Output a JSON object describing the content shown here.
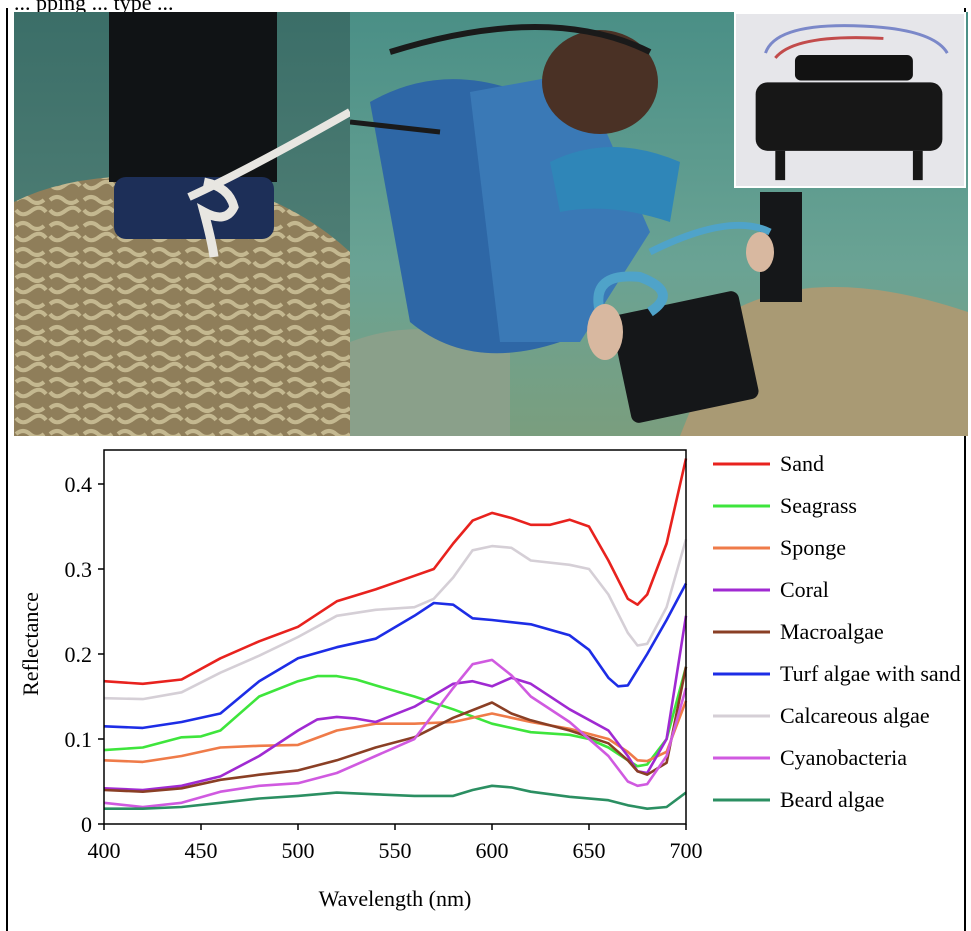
{
  "caption": "... pping ... type ...",
  "chart_data": {
    "type": "line",
    "xlabel": "Wavelength (nm)",
    "ylabel": "Reflectance",
    "xlim": [
      400,
      700
    ],
    "ylim": [
      0,
      0.44
    ],
    "xticks": [
      400,
      450,
      500,
      550,
      600,
      650,
      700
    ],
    "yticks": [
      0,
      0.1,
      0.2,
      0.3,
      0.4
    ],
    "ytick_labels": [
      "0",
      "0.1",
      "0.2",
      "0.3",
      "0.4"
    ],
    "legend_position": "right",
    "grid": false,
    "series": [
      {
        "name": "Sand",
        "color": "#e8221e",
        "x": [
          400,
          420,
          440,
          460,
          480,
          500,
          520,
          540,
          560,
          570,
          580,
          590,
          600,
          610,
          620,
          630,
          640,
          650,
          660,
          670,
          675,
          680,
          690,
          700
        ],
        "y": [
          0.168,
          0.165,
          0.17,
          0.195,
          0.215,
          0.232,
          0.262,
          0.276,
          0.292,
          0.3,
          0.33,
          0.357,
          0.366,
          0.36,
          0.352,
          0.352,
          0.358,
          0.35,
          0.31,
          0.265,
          0.258,
          0.27,
          0.33,
          0.43
        ]
      },
      {
        "name": "Seagrass",
        "color": "#3ee53c",
        "x": [
          400,
          420,
          440,
          450,
          460,
          480,
          500,
          510,
          520,
          530,
          540,
          560,
          580,
          600,
          620,
          640,
          650,
          660,
          670,
          675,
          680,
          690,
          700
        ],
        "y": [
          0.087,
          0.09,
          0.102,
          0.103,
          0.11,
          0.15,
          0.168,
          0.174,
          0.174,
          0.17,
          0.163,
          0.15,
          0.135,
          0.118,
          0.108,
          0.105,
          0.1,
          0.09,
          0.075,
          0.068,
          0.07,
          0.1,
          0.185
        ]
      },
      {
        "name": "Sponge",
        "color": "#ef7b49",
        "x": [
          400,
          420,
          440,
          460,
          480,
          500,
          520,
          540,
          560,
          580,
          600,
          620,
          640,
          660,
          670,
          675,
          680,
          690,
          700
        ],
        "y": [
          0.075,
          0.073,
          0.08,
          0.09,
          0.092,
          0.093,
          0.11,
          0.118,
          0.118,
          0.12,
          0.13,
          0.12,
          0.112,
          0.1,
          0.085,
          0.075,
          0.074,
          0.085,
          0.145
        ]
      },
      {
        "name": "Coral",
        "color": "#a02ad2",
        "x": [
          400,
          420,
          440,
          460,
          480,
          500,
          510,
          520,
          530,
          540,
          560,
          580,
          590,
          600,
          610,
          620,
          640,
          660,
          670,
          675,
          680,
          690,
          700
        ],
        "y": [
          0.042,
          0.04,
          0.045,
          0.056,
          0.08,
          0.11,
          0.123,
          0.126,
          0.124,
          0.12,
          0.138,
          0.165,
          0.168,
          0.162,
          0.172,
          0.165,
          0.135,
          0.11,
          0.08,
          0.062,
          0.06,
          0.1,
          0.245
        ]
      },
      {
        "name": "Macroalgae",
        "color": "#8a3f25",
        "x": [
          400,
          420,
          440,
          460,
          480,
          500,
          520,
          540,
          560,
          580,
          600,
          610,
          620,
          640,
          660,
          670,
          675,
          680,
          690,
          700
        ],
        "y": [
          0.04,
          0.038,
          0.042,
          0.052,
          0.058,
          0.063,
          0.075,
          0.09,
          0.102,
          0.125,
          0.143,
          0.13,
          0.122,
          0.11,
          0.095,
          0.075,
          0.062,
          0.058,
          0.072,
          0.185
        ]
      },
      {
        "name": "Turf algae with sand",
        "color": "#1d2de6",
        "x": [
          400,
          420,
          440,
          460,
          480,
          500,
          520,
          540,
          560,
          570,
          580,
          590,
          600,
          620,
          640,
          650,
          660,
          665,
          670,
          680,
          690,
          700
        ],
        "y": [
          0.115,
          0.113,
          0.12,
          0.13,
          0.168,
          0.195,
          0.208,
          0.218,
          0.245,
          0.26,
          0.258,
          0.242,
          0.24,
          0.235,
          0.222,
          0.205,
          0.172,
          0.162,
          0.163,
          0.2,
          0.24,
          0.283
        ]
      },
      {
        "name": "Calcareous algae",
        "color": "#d5cfd6",
        "x": [
          400,
          420,
          440,
          460,
          480,
          500,
          520,
          540,
          560,
          570,
          580,
          590,
          600,
          610,
          620,
          640,
          650,
          660,
          670,
          675,
          680,
          690,
          700
        ],
        "y": [
          0.148,
          0.147,
          0.155,
          0.178,
          0.198,
          0.22,
          0.245,
          0.252,
          0.255,
          0.265,
          0.29,
          0.322,
          0.327,
          0.325,
          0.31,
          0.305,
          0.3,
          0.27,
          0.225,
          0.21,
          0.212,
          0.255,
          0.335
        ]
      },
      {
        "name": "Cyanobacteria",
        "color": "#d05ae0",
        "x": [
          400,
          420,
          440,
          460,
          480,
          500,
          520,
          540,
          560,
          580,
          590,
          600,
          610,
          620,
          640,
          660,
          670,
          675,
          680,
          690,
          700
        ],
        "y": [
          0.025,
          0.02,
          0.025,
          0.038,
          0.045,
          0.048,
          0.06,
          0.08,
          0.1,
          0.16,
          0.188,
          0.193,
          0.175,
          0.15,
          0.12,
          0.08,
          0.05,
          0.045,
          0.047,
          0.08,
          0.16
        ]
      },
      {
        "name": "Beard algae",
        "color": "#2b8f62",
        "x": [
          400,
          420,
          440,
          460,
          480,
          500,
          520,
          540,
          560,
          580,
          590,
          600,
          610,
          620,
          640,
          660,
          670,
          680,
          690,
          700
        ],
        "y": [
          0.018,
          0.018,
          0.02,
          0.025,
          0.03,
          0.033,
          0.037,
          0.035,
          0.033,
          0.033,
          0.04,
          0.045,
          0.043,
          0.038,
          0.032,
          0.028,
          0.022,
          0.018,
          0.02,
          0.037
        ]
      }
    ]
  }
}
